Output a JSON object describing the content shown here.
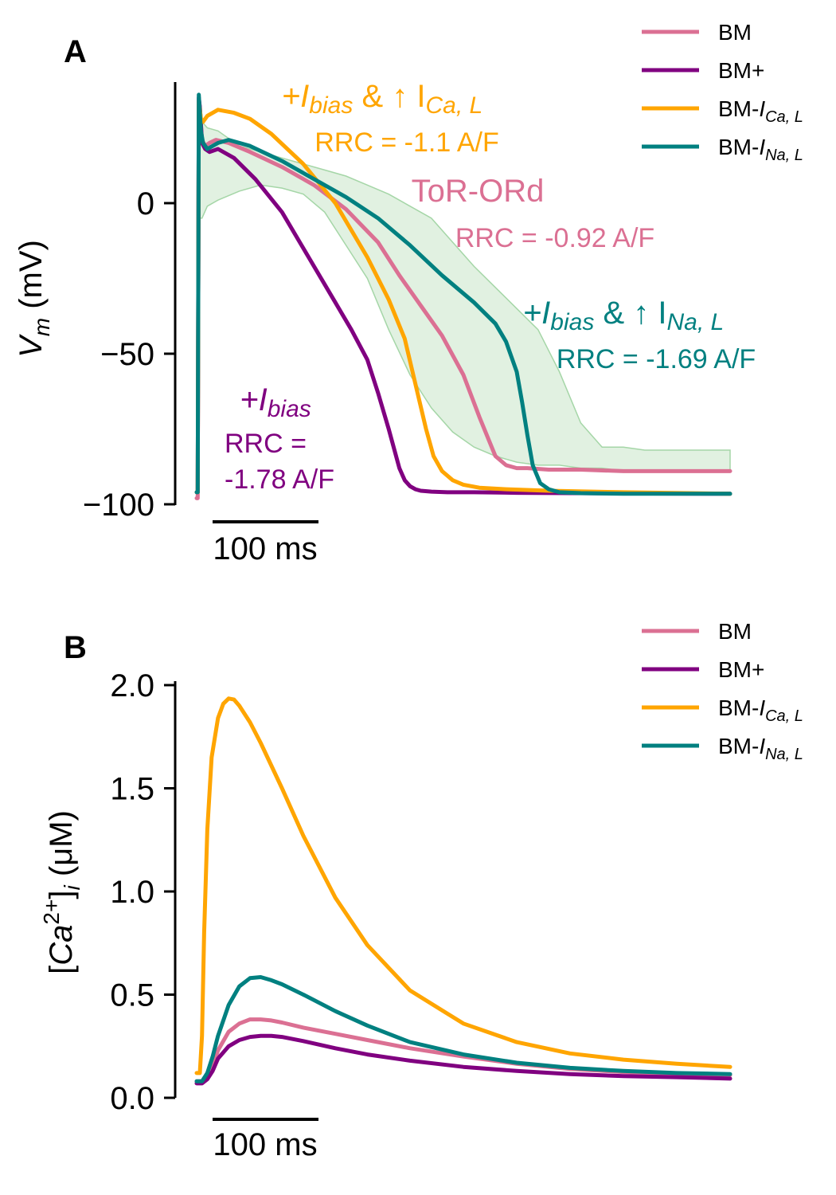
{
  "colors": {
    "BM": "#db7093",
    "BM+": "#800080",
    "BM-ICaL": "#ffa500",
    "BM-INaL": "#008080",
    "band": "#c8e6c9",
    "band_edge": "#a5d6a7"
  },
  "scale_bar_label": "100 ms",
  "chart_data": [
    {
      "panel": "A",
      "type": "line",
      "ylabel": "V_m (mV)",
      "ylabel_parts": {
        "var": "V",
        "sub": "m",
        "unit": " (mV)"
      },
      "yticks": [
        0,
        -50,
        -100
      ],
      "ytick_labels": [
        "0",
        "−50",
        "−100"
      ],
      "ylim": [
        -100,
        40
      ],
      "xlim_ms": [
        0,
        500
      ],
      "scale_bar_ms": 100,
      "legend": {
        "position": "top-right",
        "entries": [
          {
            "series": "BM",
            "label": "BM",
            "sub": ""
          },
          {
            "series": "BM+",
            "label": "BM+",
            "sub": ""
          },
          {
            "series": "BM-ICaL",
            "label": "BM-I",
            "sub": "Ca, L"
          },
          {
            "series": "BM-INaL",
            "label": "BM-I",
            "sub": "Na, L"
          }
        ]
      },
      "annotations": [
        {
          "series": "BM-ICaL",
          "title_pre": "+I",
          "title_sub": "bias",
          "title_post": " & ↑ I",
          "title_sub2": "Ca, L",
          "rrc": "RRC = -1.1 A/F"
        },
        {
          "series": "BM",
          "title_plain": "ToR-ORd",
          "rrc": "RRC = -0.92 A/F"
        },
        {
          "series": "BM-INaL",
          "title_pre": "+I",
          "title_sub": "bias",
          "title_post": " & ↑ I",
          "title_sub2": "Na, L",
          "rrc": "RRC = -1.69 A/F"
        },
        {
          "series": "BM+",
          "title_pre": "+I",
          "title_sub": "bias",
          "rrc_line1": "RRC =",
          "rrc_line2": "-1.78 A/F"
        }
      ],
      "band": {
        "label": "",
        "x": [
          3,
          5,
          10,
          20,
          40,
          60,
          80,
          100,
          120,
          140,
          160,
          180,
          200,
          220,
          240,
          260,
          280,
          300,
          320,
          340,
          360,
          380,
          400,
          420,
          450,
          500
        ],
        "upper": [
          27,
          27,
          25,
          24,
          19,
          17,
          15,
          13,
          11,
          9,
          6,
          3,
          -1,
          -5,
          -13,
          -21,
          -28,
          -35,
          -42,
          -56,
          -73,
          -81,
          -81,
          -82,
          -82,
          -82
        ],
        "lower": [
          -5,
          -5,
          -1,
          1,
          4,
          6,
          5,
          3,
          -3,
          -14,
          -25,
          -42,
          -57,
          -68,
          -76,
          -81,
          -84,
          -86,
          -87,
          -87,
          -88,
          -88,
          -89,
          -89,
          -89,
          -89
        ]
      },
      "series": [
        {
          "name": "BM",
          "x": [
            0,
            1,
            2,
            3,
            4,
            5,
            8,
            12,
            18,
            30,
            50,
            80,
            110,
            140,
            170,
            190,
            210,
            230,
            250,
            265,
            280,
            290,
            300,
            310,
            330,
            360,
            400,
            450,
            500
          ],
          "y": [
            -98,
            -98,
            34,
            32,
            26,
            21,
            19,
            20,
            21,
            20,
            17,
            12,
            6,
            -2,
            -13,
            -24,
            -34,
            -44,
            -57,
            -71,
            -84,
            -87,
            -88,
            -88,
            -88.5,
            -88.5,
            -89,
            -89,
            -89
          ]
        },
        {
          "name": "BM+",
          "x": [
            0,
            1,
            2,
            3,
            4,
            5,
            8,
            12,
            20,
            35,
            55,
            80,
            105,
            130,
            145,
            160,
            170,
            180,
            190,
            195,
            200,
            205,
            210,
            220,
            235,
            260,
            300,
            400,
            500
          ],
          "y": [
            -96,
            -96,
            35,
            32,
            26,
            20,
            18,
            17,
            18,
            15,
            8,
            -3,
            -18,
            -33,
            -42,
            -52,
            -63,
            -75,
            -88,
            -92,
            -94,
            -95,
            -95.5,
            -95.8,
            -96,
            -96,
            -96.2,
            -96.4,
            -96.5
          ]
        },
        {
          "name": "BM-ICaL",
          "x": [
            0,
            1,
            2,
            3,
            4,
            6,
            10,
            20,
            35,
            50,
            70,
            100,
            130,
            160,
            180,
            195,
            205,
            215,
            222,
            230,
            240,
            250,
            265,
            290,
            330,
            400,
            500
          ],
          "y": [
            -96,
            -96,
            34,
            31,
            28,
            27,
            29,
            31,
            30,
            28,
            23,
            13,
            0,
            -18,
            -32,
            -45,
            -60,
            -75,
            -84,
            -89,
            -92,
            -93.5,
            -94.5,
            -95,
            -95.5,
            -96,
            -96.5
          ]
        },
        {
          "name": "BM-INaL",
          "x": [
            0,
            1,
            2,
            3,
            4,
            6,
            10,
            15,
            20,
            30,
            50,
            80,
            110,
            140,
            170,
            200,
            230,
            260,
            280,
            290,
            300,
            305,
            310,
            315,
            322,
            330,
            340,
            360,
            400,
            450,
            500
          ],
          "y": [
            -96,
            -96,
            36,
            30,
            24,
            20,
            18,
            19,
            20,
            21,
            19,
            14,
            8,
            2,
            -5,
            -14,
            -24,
            -33,
            -40,
            -46,
            -56,
            -66,
            -77,
            -87,
            -93,
            -95,
            -96,
            -96.3,
            -96.5,
            -96.5,
            -96.5
          ]
        }
      ]
    },
    {
      "panel": "B",
      "type": "line",
      "ylabel": "[Ca2+]i (μM)",
      "ylabel_parts": {
        "open": "[",
        "var": "Ca",
        "sup": "2+",
        "close": "]",
        "sub": "i",
        "unit": " (μM)"
      },
      "yticks": [
        0.0,
        0.5,
        1.0,
        1.5,
        2.0
      ],
      "ytick_labels": [
        "0.0",
        "0.5",
        "1.0",
        "1.5",
        "2.0"
      ],
      "ylim": [
        0,
        2
      ],
      "xlim_ms": [
        0,
        500
      ],
      "scale_bar_ms": 100,
      "legend": {
        "position": "top-right",
        "entries": [
          {
            "series": "BM",
            "label": "BM",
            "sub": ""
          },
          {
            "series": "BM+",
            "label": "BM+",
            "sub": ""
          },
          {
            "series": "BM-ICaL",
            "label": "BM-I",
            "sub": "Ca, L"
          },
          {
            "series": "BM-INaL",
            "label": "BM-I",
            "sub": "Na, L"
          }
        ]
      },
      "series": [
        {
          "name": "BM",
          "x": [
            0,
            5,
            10,
            15,
            20,
            30,
            40,
            50,
            60,
            70,
            80,
            100,
            130,
            160,
            200,
            250,
            300,
            350,
            400,
            450,
            500
          ],
          "y": [
            0.08,
            0.08,
            0.1,
            0.15,
            0.23,
            0.32,
            0.36,
            0.38,
            0.38,
            0.375,
            0.365,
            0.34,
            0.31,
            0.28,
            0.24,
            0.2,
            0.165,
            0.14,
            0.125,
            0.115,
            0.11
          ]
        },
        {
          "name": "BM+",
          "x": [
            0,
            5,
            10,
            15,
            20,
            30,
            40,
            50,
            60,
            70,
            80,
            100,
            130,
            160,
            200,
            250,
            300,
            350,
            400,
            450,
            500
          ],
          "y": [
            0.07,
            0.07,
            0.09,
            0.13,
            0.19,
            0.25,
            0.28,
            0.295,
            0.3,
            0.3,
            0.295,
            0.275,
            0.24,
            0.21,
            0.18,
            0.15,
            0.13,
            0.115,
            0.105,
            0.1,
            0.093
          ]
        },
        {
          "name": "BM-ICaL",
          "x": [
            0,
            3,
            5,
            7,
            10,
            14,
            20,
            25,
            30,
            35,
            40,
            50,
            60,
            80,
            100,
            130,
            160,
            200,
            250,
            300,
            350,
            400,
            450,
            500
          ],
          "y": [
            0.12,
            0.12,
            0.3,
            0.8,
            1.3,
            1.65,
            1.84,
            1.91,
            1.935,
            1.93,
            1.9,
            1.82,
            1.72,
            1.5,
            1.27,
            0.97,
            0.74,
            0.52,
            0.36,
            0.27,
            0.215,
            0.185,
            0.165,
            0.15
          ]
        },
        {
          "name": "BM-INaL",
          "x": [
            0,
            5,
            10,
            15,
            20,
            30,
            40,
            50,
            60,
            70,
            80,
            100,
            130,
            160,
            200,
            250,
            300,
            350,
            400,
            450,
            500
          ],
          "y": [
            0.08,
            0.08,
            0.12,
            0.2,
            0.3,
            0.45,
            0.54,
            0.58,
            0.585,
            0.57,
            0.55,
            0.5,
            0.42,
            0.35,
            0.27,
            0.21,
            0.17,
            0.145,
            0.13,
            0.12,
            0.115
          ]
        }
      ]
    }
  ]
}
